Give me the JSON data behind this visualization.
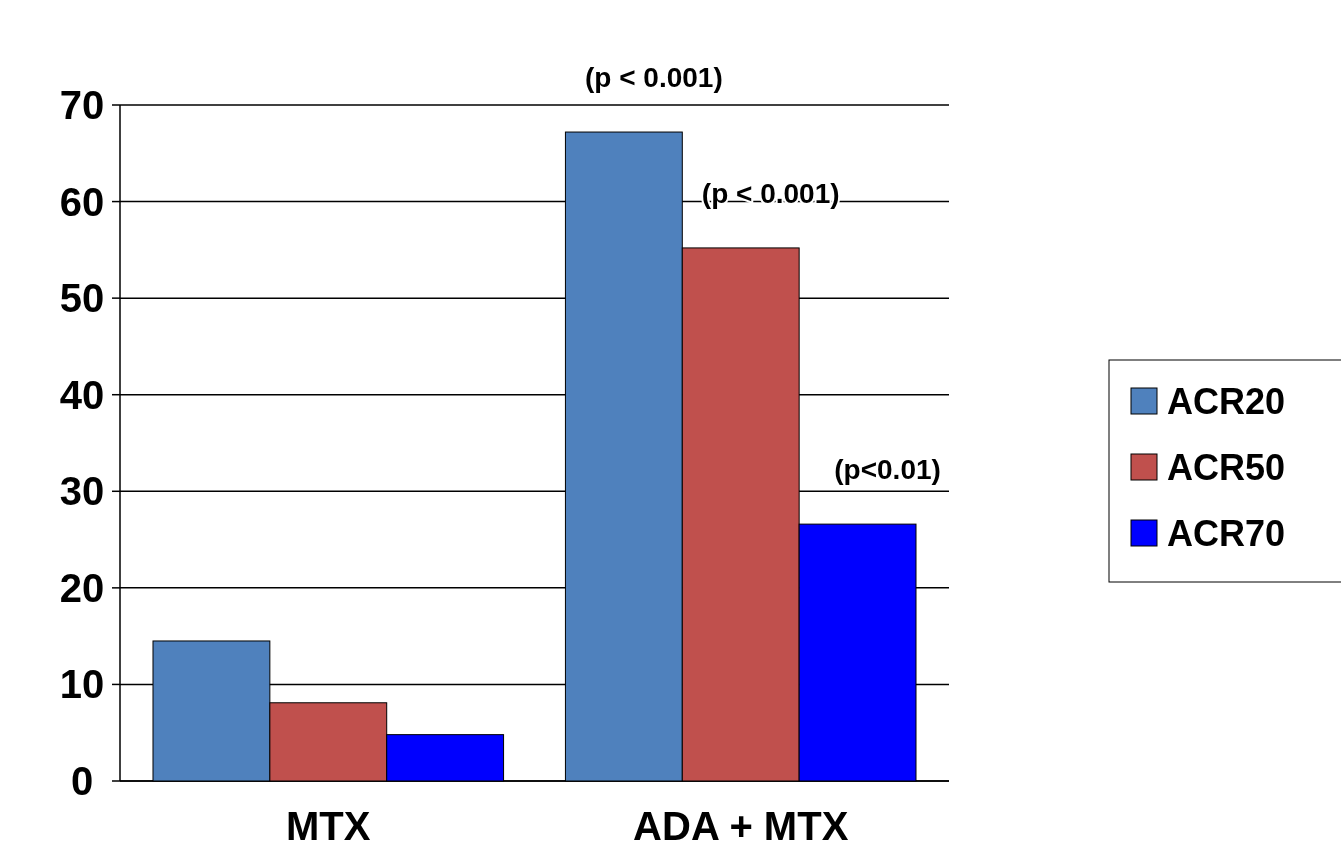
{
  "chart_data": {
    "type": "bar",
    "categories": [
      "MTX",
      "ADA + MTX"
    ],
    "series": [
      {
        "name": "ACR20",
        "color": "#4f81bd",
        "values": [
          14.5,
          67.2
        ]
      },
      {
        "name": "ACR50",
        "color": "#c0504d",
        "values": [
          8.1,
          55.2
        ]
      },
      {
        "name": "ACR70",
        "color": "#0000ff",
        "values": [
          4.8,
          26.6
        ]
      }
    ],
    "ylim": [
      0,
      70
    ],
    "yticks": [
      0,
      10,
      20,
      30,
      40,
      50,
      60,
      70
    ],
    "grid": "y",
    "legend": "right",
    "annotations": [
      "(p < 0.001)",
      "(p < 0.001)",
      "(p<0.01)"
    ]
  }
}
